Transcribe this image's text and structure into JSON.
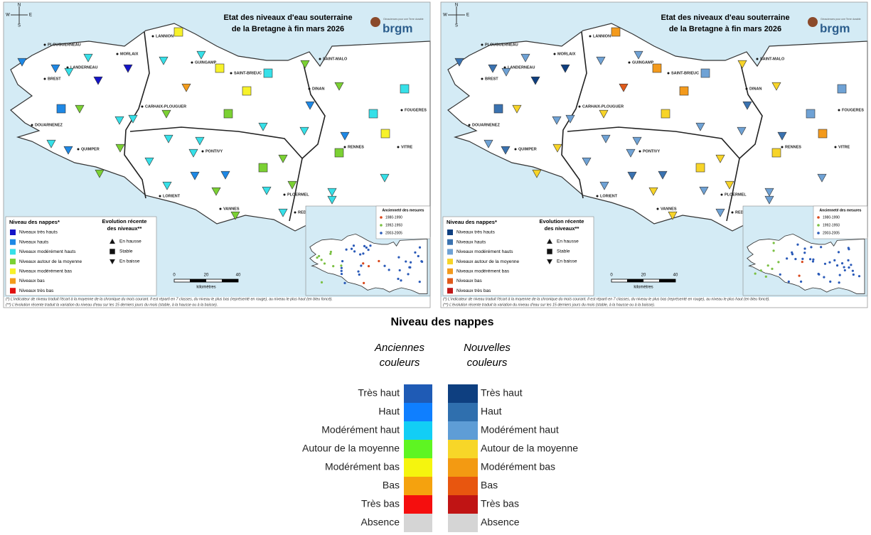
{
  "maps": [
    {
      "title_lines": [
        "Etat des niveaux d'eau souterraine",
        "de la Bretagne à fin mars 2026"
      ],
      "logo": "brgm",
      "logo_tagline": "Géosciences pour une Terre durable",
      "compass": [
        "N",
        "E",
        "S",
        "W"
      ],
      "cities": [
        "PLOUGUERNEAU",
        "MORLAIX",
        "LANNION",
        "LANDERNEAU",
        "BREST",
        "GUINGAMP",
        "SAINT-BRIEUC",
        "SAINT-MALO",
        "DINAN",
        "CARHAIX-PLOUGUER",
        "FOUGERES",
        "DOUARNENEZ",
        "QUIMPER",
        "PONTIVY",
        "RENNES",
        "VITRE",
        "LORIENT",
        "PLOERMEL",
        "VANNES",
        "REDON"
      ],
      "marker_colors": [
        "#1414c8",
        "#1e88e5",
        "#36e0e8",
        "#7bd133",
        "#f7f22a",
        "#f39c1c",
        "#e01010"
      ],
      "legend": {
        "title": "Niveau des nappes*",
        "items": [
          "Niveaux très hauts",
          "Niveaux hauts",
          "Niveaux modérément hauts",
          "Niveaux autour de la moyenne",
          "Niveaux modérément bas",
          "Niveaux bas",
          "Niveaux très bas"
        ],
        "evolution_title": [
          "Evolution récente",
          "des niveaux**"
        ],
        "evolution_items": [
          "En hausse",
          "Stable",
          "En baisse"
        ]
      },
      "inset_legend": {
        "title": "Ancienneté des mesures",
        "items": [
          "1980-1990",
          "1992-1993",
          "2003-2005"
        ],
        "colors": [
          "#d9481c",
          "#7bc043",
          "#2a5ab8"
        ]
      },
      "scale": {
        "labels": [
          "0",
          "20",
          "40"
        ],
        "unit": "kilomètres"
      },
      "footnotes": [
        "(*) L'indicateur de niveau traduit l'écart à la moyenne de la chronique du mois courant. Il est réparti en 7 classes, du niveau le plus bas (représenté en rouge), au niveau le plus haut (en bleu foncé).",
        "(**) L'évolution récente traduit la variation du niveau d'eau sur les 15 derniers jours du mois (stable, à la hausse ou à la baisse)."
      ]
    },
    {
      "title_lines": [
        "Etat des niveaux d'eau souterraine",
        "de la Bretagne à fin mars 2026"
      ],
      "logo": "brgm",
      "logo_tagline": "Géosciences pour une Terre durable",
      "compass": [
        "N",
        "E",
        "S",
        "W"
      ],
      "cities": [
        "PLOUGUERNEAU",
        "MORLAIX",
        "LANNION",
        "LANDERNEAU",
        "BREST",
        "GUINGAMP",
        "SAINT-BRIEUC",
        "SAINT-MALO",
        "DINAN",
        "CARHAIX-PLOUGUER",
        "FOUGERES",
        "DOUARNENEZ",
        "QUIMPER",
        "PONTIVY",
        "RENNES",
        "VITRE",
        "LORIENT",
        "PLOERMEL",
        "VANNES",
        "REDON"
      ],
      "marker_colors": [
        "#0e3f80",
        "#3a72b0",
        "#6fa2d5",
        "#f7d428",
        "#f39a1c",
        "#e05a1a",
        "#c01818"
      ],
      "legend": {
        "title": "Niveau des nappes*",
        "items": [
          "Niveaux très hauts",
          "Niveaux hauts",
          "Niveaux modérément hauts",
          "Niveaux autour de la moyenne",
          "Niveaux modérément bas",
          "Niveaux bas",
          "Niveaux très bas"
        ],
        "evolution_title": [
          "Evolution récente",
          "des niveaux**"
        ],
        "evolution_items": [
          "En hausse",
          "Stable",
          "En baisse"
        ]
      },
      "inset_legend": {
        "title": "Ancienneté des mesures",
        "items": [
          "1980-1990",
          "1992-1993",
          "2003-2005"
        ],
        "colors": [
          "#d9481c",
          "#7bc043",
          "#2a5ab8"
        ]
      },
      "scale": {
        "labels": [
          "0",
          "20",
          "40"
        ],
        "unit": "kilomètres"
      },
      "footnotes": [
        "(*) L'indicateur de niveau traduit l'écart à la moyenne de la chronique du mois courant. Il est réparti en 7 classes, du niveau le plus bas (représenté en rouge), au niveau le plus haut (en bleu foncé).",
        "(**) L'évolution récente traduit la variation du niveau d'eau sur les 15 derniers jours du mois (stable, à la hausse ou à la baisse)."
      ]
    }
  ],
  "comparison": {
    "title": "Niveau des nappes",
    "old_header": [
      "Anciennes",
      "couleurs"
    ],
    "new_header": [
      "Nouvelles",
      "couleurs"
    ],
    "old_labels": [
      "Très haut",
      "Haut",
      "Modérément haut",
      "Autour de la moyenne",
      "Modérément bas",
      "Bas",
      "Très bas",
      "Absence"
    ],
    "new_labels": [
      "Très haut",
      "Haut",
      "Modérément haut",
      "Autour de la moyenne",
      "Modérément bas",
      "Bas",
      "Très bas",
      "Absence"
    ],
    "old_colors": [
      "#1f5bb5",
      "#0f7fff",
      "#12cef5",
      "#5ef522",
      "#f5f50e",
      "#f5a20e",
      "#f50e0e",
      "#d5d5d5"
    ],
    "new_colors": [
      "#0e3f80",
      "#2f6fae",
      "#5e9dd6",
      "#f7d628",
      "#f39a12",
      "#e8560f",
      "#c01414",
      "#d5d5d5"
    ]
  }
}
